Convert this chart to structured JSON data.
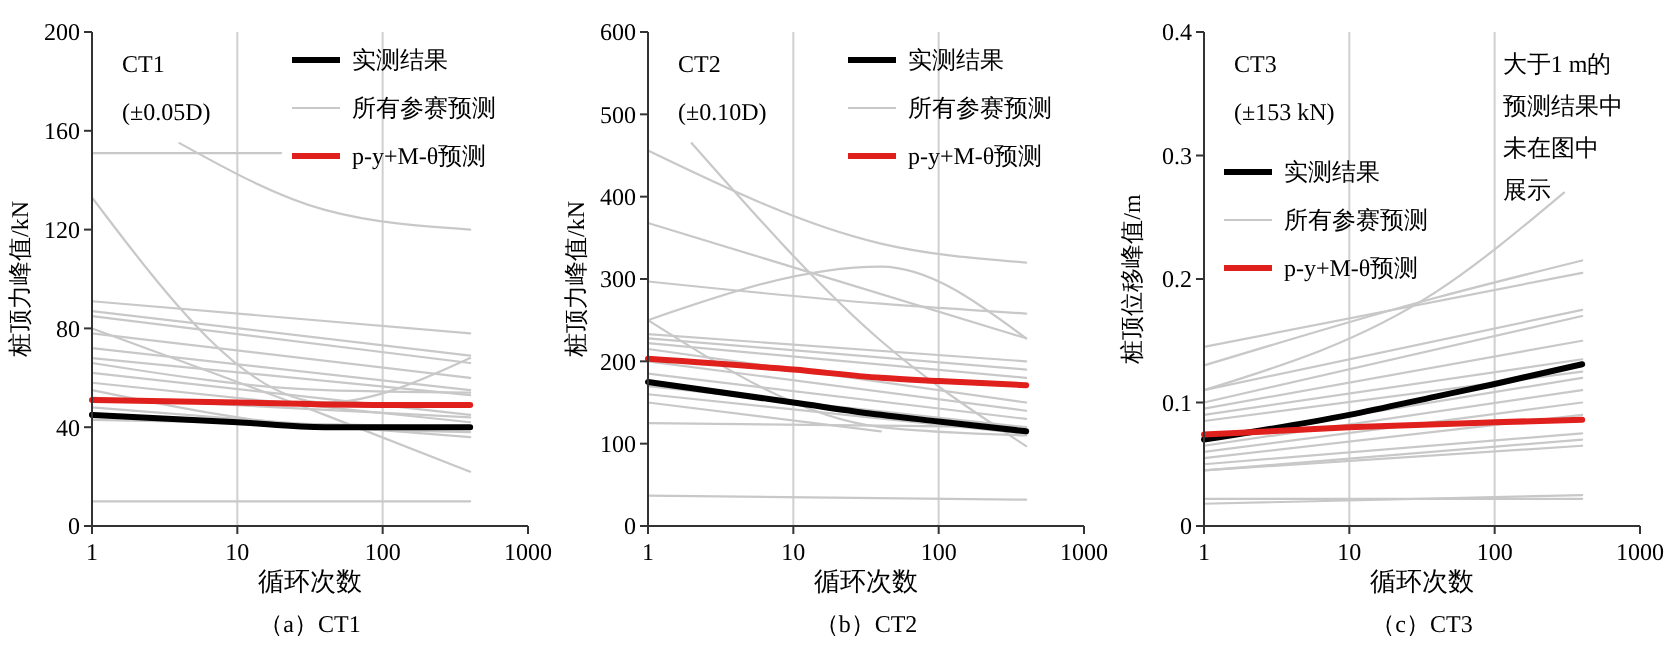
{
  "chart_data": [
    {
      "type": "line",
      "title": "CT1",
      "subtitle": "(±0.05D)",
      "xlabel": "循环次数",
      "ylabel": "桩顶力峰值/kN",
      "log": "x",
      "ref_lines": [
        {
          "axis": "x",
          "value": 10,
          "color": "#d0d0d0"
        },
        {
          "axis": "x",
          "value": 100,
          "color": "#d0d0d0"
        }
      ],
      "legend": "top right",
      "xlim": [
        1,
        1000
      ],
      "xticks": [
        1,
        10,
        100,
        1000
      ],
      "ylim": [
        0,
        200
      ],
      "yticks": [
        0,
        40,
        80,
        120,
        160,
        200
      ],
      "annotations": [
        "（a）CT1"
      ],
      "series": [
        {
          "name": "实测结果",
          "color": "#000000",
          "x": [
            1,
            10,
            40,
            400
          ],
          "values": [
            45,
            42,
            40,
            40
          ]
        },
        {
          "name": "所有参赛预测",
          "color": "#c8c8c8",
          "x": [
            1,
            20
          ],
          "values": [
            151,
            151
          ]
        },
        {
          "name": "p-y+M-θ预测",
          "color": "#e0201c",
          "x": [
            1,
            10,
            100,
            400
          ],
          "values": [
            51,
            50,
            49,
            49
          ]
        },
        {
          "color": "#c8c8c8",
          "x": [
            4,
            40,
            400
          ],
          "values": [
            155,
            128,
            120
          ]
        },
        {
          "color": "#c8c8c8",
          "x": [
            1,
            40,
            400
          ],
          "values": [
            133,
            50,
            68
          ]
        },
        {
          "color": "#c8c8c8",
          "x": [
            1,
            400
          ],
          "values": [
            91,
            78
          ]
        },
        {
          "color": "#c8c8c8",
          "x": [
            1,
            400
          ],
          "values": [
            87,
            69
          ]
        },
        {
          "color": "#c8c8c8",
          "x": [
            1,
            400
          ],
          "values": [
            85,
            66
          ]
        },
        {
          "color": "#c8c8c8",
          "x": [
            1,
            40,
            400
          ],
          "values": [
            80,
            45,
            22
          ]
        },
        {
          "color": "#c8c8c8",
          "x": [
            1,
            400
          ],
          "values": [
            78,
            60
          ]
        },
        {
          "color": "#c8c8c8",
          "x": [
            1,
            400
          ],
          "values": [
            72,
            55
          ]
        },
        {
          "color": "#c8c8c8",
          "x": [
            1,
            400
          ],
          "values": [
            68,
            53
          ]
        },
        {
          "color": "#c8c8c8",
          "x": [
            1,
            40,
            400
          ],
          "values": [
            66,
            55,
            54
          ]
        },
        {
          "color": "#c8c8c8",
          "x": [
            1,
            400
          ],
          "values": [
            62,
            45
          ]
        },
        {
          "color": "#c8c8c8",
          "x": [
            1,
            400
          ],
          "values": [
            58,
            42
          ]
        },
        {
          "color": "#c8c8c8",
          "x": [
            1,
            40,
            400
          ],
          "values": [
            55,
            40,
            38
          ]
        },
        {
          "color": "#c8c8c8",
          "x": [
            1,
            400
          ],
          "values": [
            52,
            44
          ]
        },
        {
          "color": "#c8c8c8",
          "x": [
            1,
            400
          ],
          "values": [
            48,
            36
          ]
        },
        {
          "color": "#c8c8c8",
          "x": [
            1,
            400
          ],
          "values": [
            43,
            40
          ]
        },
        {
          "color": "#c8c8c8",
          "x": [
            1,
            400
          ],
          "values": [
            10,
            10
          ]
        }
      ]
    },
    {
      "type": "line",
      "title": "CT2",
      "subtitle": "(±0.10D)",
      "xlabel": "循环次数",
      "ylabel": "桩顶力峰值/kN",
      "log": "x",
      "ref_lines": [
        {
          "axis": "x",
          "value": 10,
          "color": "#d0d0d0"
        },
        {
          "axis": "x",
          "value": 100,
          "color": "#d0d0d0"
        }
      ],
      "legend": "top right",
      "xlim": [
        1,
        1000
      ],
      "xticks": [
        1,
        10,
        100,
        1000
      ],
      "ylim": [
        0,
        600
      ],
      "yticks": [
        0,
        100,
        200,
        300,
        400,
        500,
        600
      ],
      "annotations": [
        "（b）CT2"
      ],
      "series": [
        {
          "name": "实测结果",
          "color": "#000000",
          "x": [
            1,
            10,
            40,
            100,
            400
          ],
          "values": [
            175,
            150,
            135,
            127,
            115
          ]
        },
        {
          "name": "所有参赛预测",
          "color": "#c8c8c8",
          "x": [
            1,
            40,
            400
          ],
          "values": [
            456,
            343,
            320
          ]
        },
        {
          "name": "p-y+M-θ预测",
          "color": "#e0201c",
          "x": [
            1,
            10,
            40,
            100,
            400
          ],
          "values": [
            203,
            190,
            180,
            176,
            171
          ]
        },
        {
          "color": "#c8c8c8",
          "x": [
            2,
            40,
            400
          ],
          "values": [
            465,
            225,
            97
          ]
        },
        {
          "color": "#c8c8c8",
          "x": [
            1,
            400
          ],
          "values": [
            368,
            228
          ]
        },
        {
          "color": "#c8c8c8",
          "x": [
            1,
            40,
            400
          ],
          "values": [
            297,
            270,
            258
          ]
        },
        {
          "color": "#c8c8c8",
          "x": [
            1,
            40,
            400
          ],
          "values": [
            250,
            315,
            228
          ]
        },
        {
          "color": "#c8c8c8",
          "x": [
            1,
            40,
            400
          ],
          "values": [
            250,
            120,
            110
          ]
        },
        {
          "color": "#c8c8c8",
          "x": [
            1,
            400
          ],
          "values": [
            233,
            200
          ]
        },
        {
          "color": "#c8c8c8",
          "x": [
            1,
            400
          ],
          "values": [
            228,
            190
          ]
        },
        {
          "color": "#c8c8c8",
          "x": [
            1,
            400
          ],
          "values": [
            222,
            180
          ]
        },
        {
          "color": "#c8c8c8",
          "x": [
            1,
            400
          ],
          "values": [
            215,
            150
          ]
        },
        {
          "color": "#c8c8c8",
          "x": [
            1,
            400
          ],
          "values": [
            200,
            140
          ]
        },
        {
          "color": "#c8c8c8",
          "x": [
            1,
            400
          ],
          "values": [
            185,
            130
          ]
        },
        {
          "color": "#c8c8c8",
          "x": [
            1,
            400
          ],
          "values": [
            170,
            120
          ]
        },
        {
          "color": "#c8c8c8",
          "x": [
            1,
            400
          ],
          "values": [
            160,
            112
          ]
        },
        {
          "color": "#c8c8c8",
          "x": [
            1,
            40
          ],
          "values": [
            150,
            115
          ]
        },
        {
          "color": "#c8c8c8",
          "x": [
            1,
            400
          ],
          "values": [
            125,
            120
          ]
        },
        {
          "color": "#c8c8c8",
          "x": [
            1,
            400
          ],
          "values": [
            37,
            32
          ]
        }
      ]
    },
    {
      "type": "line",
      "title": "CT3",
      "subtitle": "(±153 kN)",
      "xlabel": "循环次数",
      "ylabel": "桩顶位移峰值/m",
      "log": "x",
      "ref_lines": [
        {
          "axis": "x",
          "value": 10,
          "color": "#d0d0d0"
        },
        {
          "axis": "x",
          "value": 100,
          "color": "#d0d0d0"
        }
      ],
      "legend": "left",
      "xlim": [
        1,
        1000
      ],
      "xticks": [
        1,
        10,
        100,
        1000
      ],
      "ylim": [
        0,
        0.4
      ],
      "yticks": [
        0,
        0.1,
        0.2,
        0.3,
        0.4
      ],
      "annotations": [
        "（c）CT3",
        "大于1 m的预测结果中未在图中展示"
      ],
      "series": [
        {
          "name": "实测结果",
          "color": "#000000",
          "x": [
            1,
            10,
            40,
            100,
            400
          ],
          "values": [
            0.07,
            0.09,
            0.105,
            0.115,
            0.131
          ]
        },
        {
          "name": "所有参赛预测",
          "color": "#c8c8c8",
          "x": [
            1,
            40,
            300
          ],
          "values": [
            0.11,
            0.19,
            0.27
          ]
        },
        {
          "name": "p-y+M-θ预测",
          "color": "#e0201c",
          "x": [
            1,
            10,
            100,
            400
          ],
          "values": [
            0.074,
            0.08,
            0.084,
            0.086
          ]
        },
        {
          "color": "#c8c8c8",
          "x": [
            1,
            400
          ],
          "values": [
            0.145,
            0.205
          ]
        },
        {
          "color": "#c8c8c8",
          "x": [
            1,
            40,
            400
          ],
          "values": [
            0.13,
            0.185,
            0.215
          ]
        },
        {
          "color": "#c8c8c8",
          "x": [
            1,
            400
          ],
          "values": [
            0.11,
            0.175
          ]
        },
        {
          "color": "#c8c8c8",
          "x": [
            1,
            400
          ],
          "values": [
            0.1,
            0.17
          ]
        },
        {
          "color": "#c8c8c8",
          "x": [
            1,
            400
          ],
          "values": [
            0.095,
            0.15
          ]
        },
        {
          "color": "#c8c8c8",
          "x": [
            1,
            400
          ],
          "values": [
            0.09,
            0.135
          ]
        },
        {
          "color": "#c8c8c8",
          "x": [
            1,
            400
          ],
          "values": [
            0.085,
            0.125
          ]
        },
        {
          "color": "#c8c8c8",
          "x": [
            1,
            400
          ],
          "values": [
            0.07,
            0.12
          ]
        },
        {
          "color": "#c8c8c8",
          "x": [
            1,
            400
          ],
          "values": [
            0.065,
            0.11
          ]
        },
        {
          "color": "#c8c8c8",
          "x": [
            1,
            400
          ],
          "values": [
            0.06,
            0.1
          ]
        },
        {
          "color": "#c8c8c8",
          "x": [
            1,
            400
          ],
          "values": [
            0.055,
            0.09
          ]
        },
        {
          "color": "#c8c8c8",
          "x": [
            1,
            400
          ],
          "values": [
            0.05,
            0.075
          ]
        },
        {
          "color": "#c8c8c8",
          "x": [
            1,
            400
          ],
          "values": [
            0.045,
            0.07
          ]
        },
        {
          "color": "#c8c8c8",
          "x": [
            1,
            400
          ],
          "values": [
            0.045,
            0.065
          ]
        },
        {
          "color": "#c8c8c8",
          "x": [
            1,
            400
          ],
          "values": [
            0.022,
            0.022
          ]
        },
        {
          "color": "#c8c8c8",
          "x": [
            1,
            400
          ],
          "values": [
            0.018,
            0.025
          ]
        }
      ]
    }
  ]
}
